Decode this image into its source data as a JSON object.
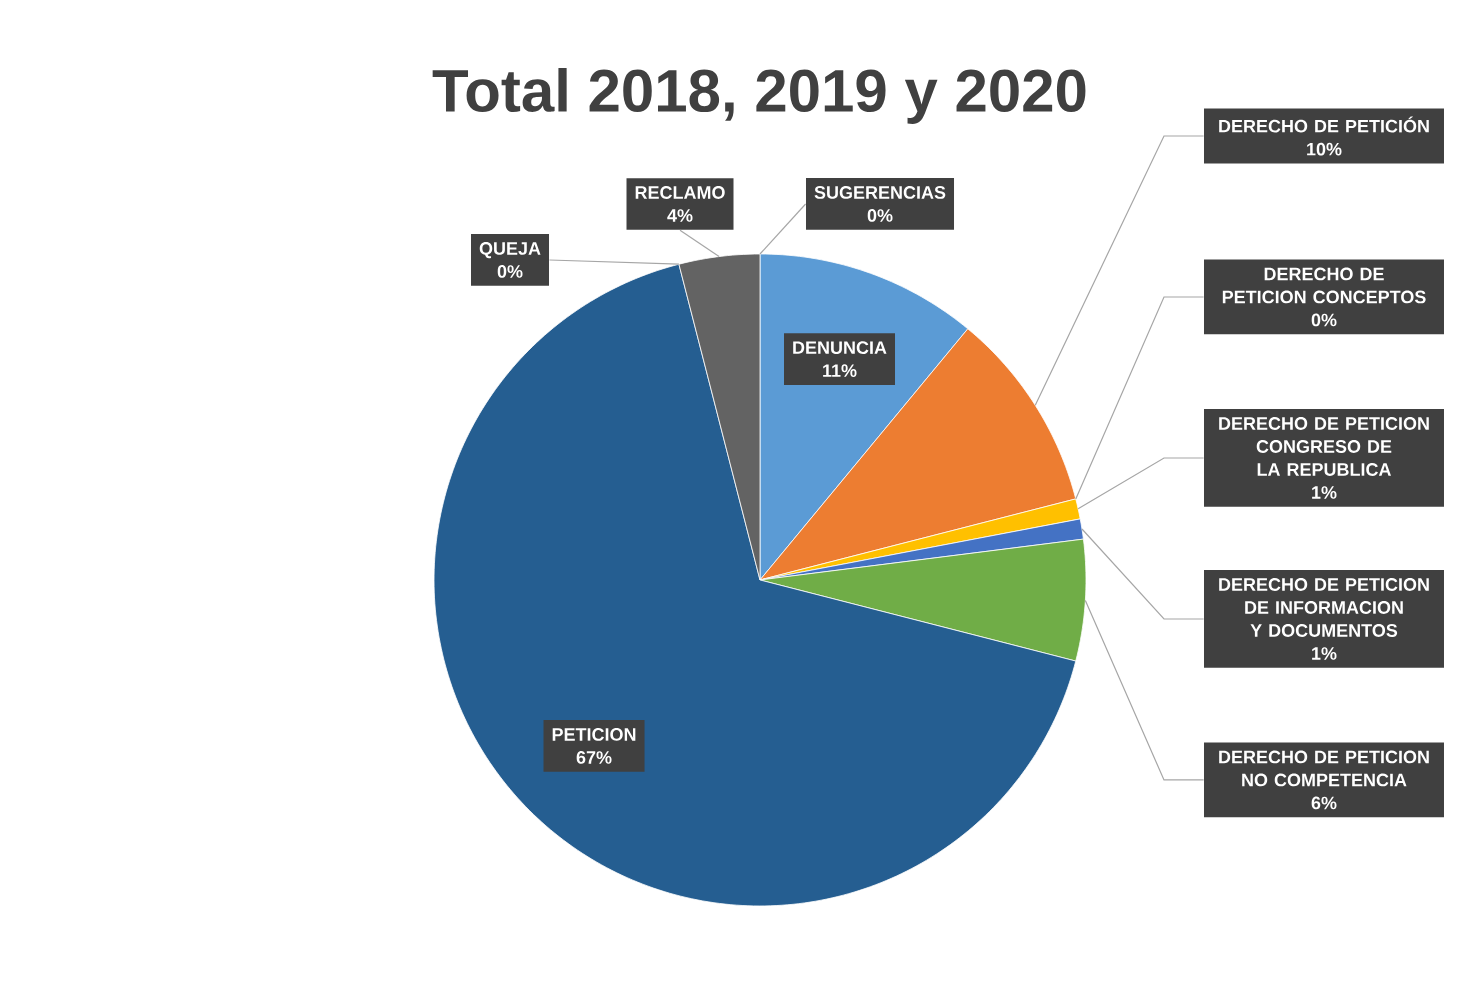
{
  "chart_data": {
    "type": "pie",
    "title": "Total 2018, 2019 y 2020",
    "categories": [
      "DENUNCIA",
      "DERECHO DE PETICIÓN",
      "DERECHO DE PETICION CONCEPTOS",
      "DERECHO DE PETICION CONGRESO DE LA REPUBLICA",
      "DERECHO DE PETICION DE INFORMACION Y DOCUMENTOS",
      "DERECHO DE PETICION NO COMPETENCIA",
      "PETICION",
      "QUEJA",
      "RECLAMO",
      "SUGERENCIAS"
    ],
    "values": [
      11,
      10,
      0,
      1,
      1,
      6,
      67,
      0,
      4,
      0
    ],
    "value_labels": [
      "11%",
      "10%",
      "0%",
      "1%",
      "1%",
      "6%",
      "67%",
      "0%",
      "4%",
      "0%"
    ],
    "colors": [
      "#5b9bd5",
      "#ed7d31",
      "#a5a5a5",
      "#ffc000",
      "#4472c4",
      "#70ad47",
      "#255e91",
      "#9e480e",
      "#636363",
      "#bf9000"
    ]
  }
}
